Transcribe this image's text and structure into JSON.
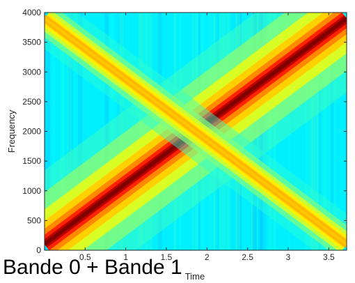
{
  "caption": "Bande 0 + Bande 1",
  "chart_data": {
    "type": "heatmap",
    "title": "",
    "xlabel": "Time",
    "ylabel": "Frequency",
    "xlim": [
      0,
      3.72
    ],
    "ylim": [
      0,
      4000
    ],
    "x_ticks": [
      {
        "value": 0.5,
        "label": "0.5"
      },
      {
        "value": 1,
        "label": "1"
      },
      {
        "value": 1.5,
        "label": "1.5"
      },
      {
        "value": 2,
        "label": "2"
      },
      {
        "value": 2.5,
        "label": "2.5"
      },
      {
        "value": 3,
        "label": "3"
      },
      {
        "value": 3.5,
        "label": "3.5"
      }
    ],
    "y_ticks": [
      {
        "value": 0,
        "label": "0"
      },
      {
        "value": 500,
        "label": "500"
      },
      {
        "value": 1000,
        "label": "1000"
      },
      {
        "value": 1500,
        "label": "1500"
      },
      {
        "value": 2000,
        "label": "2000"
      },
      {
        "value": 2500,
        "label": "2500"
      },
      {
        "value": 3000,
        "label": "3000"
      },
      {
        "value": 3500,
        "label": "3500"
      },
      {
        "value": 4000,
        "label": "4000"
      }
    ],
    "grid": false,
    "colormap": "jet",
    "colormap_stops": [
      "#00008f",
      "#0000ff",
      "#00ffff",
      "#ffff00",
      "#ff0000",
      "#800000"
    ],
    "series": [
      {
        "x": [
          0,
          3.72
        ],
        "y": [
          100,
          3900
        ],
        "intensity": 1.0
      },
      {
        "x": [
          0,
          3.72
        ],
        "y": [
          3900,
          100
        ],
        "intensity": 0.62
      }
    ]
  }
}
